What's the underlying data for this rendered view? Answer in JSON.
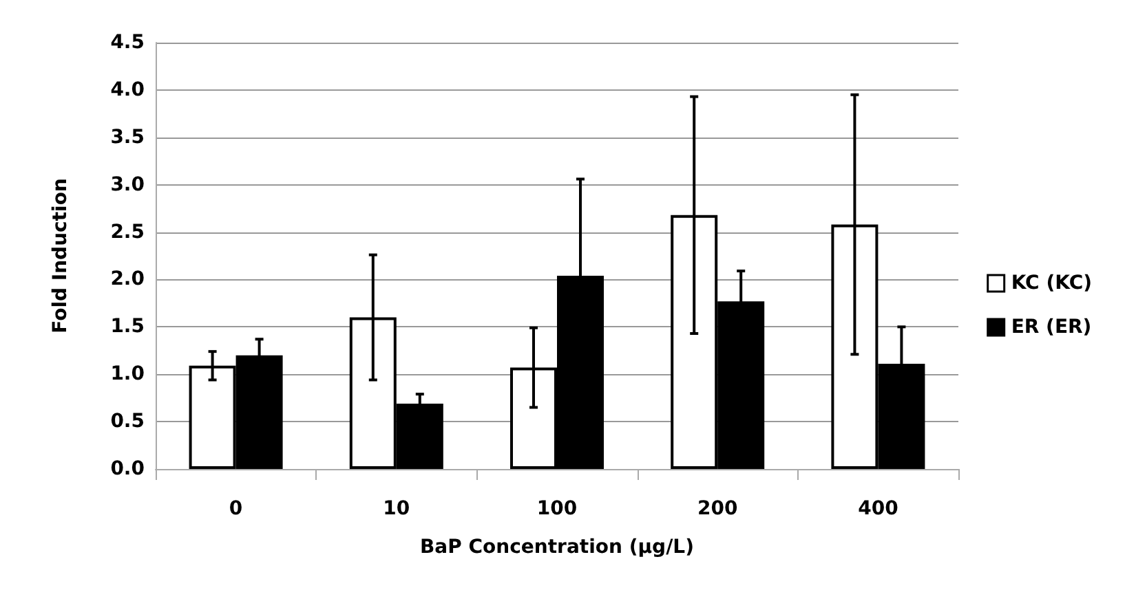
{
  "chart_data": {
    "type": "bar",
    "xlabel": "BaP Concentration (µg/L)",
    "ylabel": "Fold Induction",
    "categories": [
      "0",
      "10",
      "100",
      "200",
      "400"
    ],
    "series": [
      {
        "name": "KC (KC)",
        "color": "#ffffff",
        "values": [
          1.09,
          1.6,
          1.07,
          2.68,
          2.58
        ],
        "errors": [
          0.15,
          0.66,
          0.42,
          1.25,
          1.37
        ]
      },
      {
        "name": "ER (ER)",
        "color": "#000000",
        "values": [
          1.2,
          0.69,
          2.04,
          1.77,
          1.11
        ],
        "errors": [
          0.17,
          0.1,
          1.02,
          0.32,
          0.39
        ]
      }
    ],
    "ylim": [
      0,
      4.5
    ],
    "yticks": [
      {
        "value": 0,
        "label": "0.0"
      },
      0.5,
      {
        "value": 1,
        "label": "1.0"
      },
      1.5,
      {
        "value": 2,
        "label": "2.0"
      },
      2.5,
      {
        "value": 3,
        "label": "3.0"
      },
      3.5,
      {
        "value": 4,
        "label": "4.0"
      },
      4.5
    ],
    "grid": "y",
    "legend": "right"
  }
}
